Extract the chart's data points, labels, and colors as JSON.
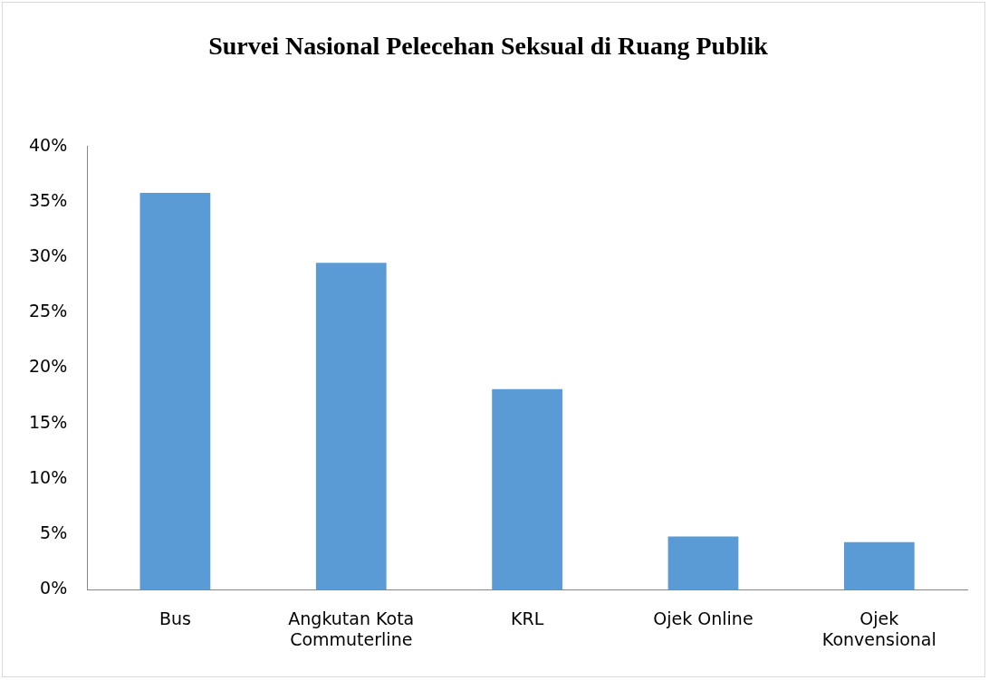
{
  "chart_data": {
    "type": "bar",
    "title": "Survei Nasional Pelecehan Seksual di Ruang Publik",
    "categories": [
      "Bus",
      "Angkutan Kota Commuterline",
      "KRL",
      "Ojek Online",
      "Ojek Konvensional"
    ],
    "values": [
      35.8,
      29.5,
      18.1,
      4.8,
      4.3
    ],
    "color": "#5b9bd5",
    "ylim": [
      0,
      40
    ],
    "yticks": [
      {
        "value": 0,
        "label": "0%"
      },
      {
        "value": 5,
        "label": "5%"
      },
      {
        "value": 10,
        "label": "10%"
      },
      {
        "value": 15,
        "label": "15%"
      },
      {
        "value": 20,
        "label": "20%"
      },
      {
        "value": 25,
        "label": "25%"
      },
      {
        "value": 30,
        "label": "30%"
      },
      {
        "value": 35,
        "label": "35%"
      },
      {
        "value": 40,
        "label": "40%"
      }
    ],
    "grid": false,
    "legend": false
  }
}
